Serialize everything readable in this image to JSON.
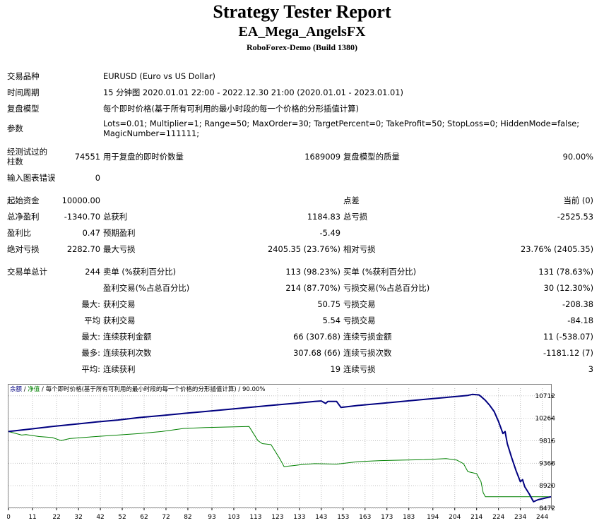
{
  "header": {
    "title": "Strategy Tester Report",
    "ea": "EA_Mega_AngelsFX",
    "broker": "RoboForex-Demo (Build 1380)"
  },
  "info": {
    "symbol_label": "交易品种",
    "symbol": "EURUSD (Euro vs US Dollar)",
    "period_label": "时间周期",
    "period": "15 分钟图 2020.01.01 22:00 - 2022.12.30 21:00 (2020.01.01 - 2023.01.01)",
    "model_label": "复盘模型",
    "model": "每个即时价格(基于所有可利用的最小时段的每一个价格的分形插值计算)",
    "params_label": "参数",
    "params": "Lots=0.01; Multiplier=1; Range=50; MaxOrder=30; TargetPercent=0; TakeProfit=50; StopLoss=0; HiddenMode=false; MagicNumber=111111;"
  },
  "stats": {
    "bars_label": "经测试过的柱数",
    "bars": "74551",
    "ticks_label": "用于复盘的即时价数量",
    "ticks": "1689009",
    "quality_label": "复盘模型的质量",
    "quality": "90.00%",
    "errors_label": "输入图表错误",
    "errors": "0",
    "deposit_label": "起始资金",
    "deposit": "10000.00",
    "spread_label": "点差",
    "spread": "当前 (0)",
    "net_label": "总净盈利",
    "net": "-1340.70",
    "gross_profit_label": "总获利",
    "gross_profit": "1184.83",
    "gross_loss_label": "总亏损",
    "gross_loss": "-2525.53",
    "pf_label": "盈利比",
    "pf": "0.47",
    "payoff_label": "预期盈利",
    "payoff": "-5.49",
    "abs_dd_label": "绝对亏损",
    "abs_dd": "2282.70",
    "max_dd_label": "最大亏损",
    "max_dd": "2405.35 (23.76%)",
    "rel_dd_label": "相对亏损",
    "rel_dd": "23.76% (2405.35)",
    "total_label": "交易单总计",
    "total": "244",
    "short_label": "卖单 (%获利百分比)",
    "short": "113 (98.23%)",
    "long_label": "买单 (%获利百分比)",
    "long": "131 (78.63%)",
    "profit_trades_label": "盈利交易(%占总百分比)",
    "profit_trades": "214 (87.70%)",
    "loss_trades_label": "亏损交易(%占总百分比)",
    "loss_trades": "30 (12.30%)",
    "largest_label": "最大:",
    "largest_win_label": "获利交易",
    "largest_win": "50.75",
    "largest_loss_label": "亏损交易",
    "largest_loss": "-208.38",
    "average_label": "平均",
    "avg_win_label": "获利交易",
    "avg_win": "5.54",
    "avg_loss_label": "亏损交易",
    "avg_loss": "-84.18",
    "max_cons_label": "最大:",
    "max_cons_win_label": "连续获利金额",
    "max_cons_win": "66 (307.68)",
    "max_cons_loss_label": "连续亏损金额",
    "max_cons_loss": "11 (-538.07)",
    "most_label": "最多:",
    "most_win_label": "连续获利次数",
    "most_win": "307.68 (66)",
    "most_loss_label": "连续亏损次数",
    "most_loss": "-1181.12 (7)",
    "avg_cons_label": "平均:",
    "avg_cons_win_label": "连续获利",
    "avg_cons_win": "19",
    "avg_cons_loss_label": "连续亏损",
    "avg_cons_loss": "3"
  },
  "chart_data": {
    "type": "line",
    "legend": {
      "balance": "余额",
      "sep1": " / ",
      "equity": "净值",
      "sep2": " / ",
      "model": "每个即时价格(基于所有可利用的最小时段的每一个价格的分形插值计算)",
      "sep3": " / ",
      "quality": "90.00%"
    },
    "x_ticks": [
      0,
      11,
      22,
      32,
      42,
      52,
      62,
      72,
      82,
      93,
      103,
      113,
      123,
      133,
      143,
      153,
      163,
      173,
      183,
      194,
      204,
      214,
      224,
      234,
      244
    ],
    "y_ticks": [
      10712,
      10264,
      9816,
      9368,
      8920,
      8472
    ],
    "xlim": [
      0,
      248
    ],
    "ylim": [
      8472,
      10864
    ],
    "colors": {
      "balance": "#000080",
      "equity": "#008000",
      "grid": "#c0c0c0"
    },
    "series": [
      {
        "name": "余额",
        "x": [
          0,
          10,
          20,
          30,
          40,
          50,
          60,
          70,
          80,
          90,
          100,
          110,
          120,
          130,
          140,
          143,
          145,
          146,
          150,
          152,
          160,
          170,
          180,
          190,
          200,
          210,
          212,
          215,
          216,
          218,
          220,
          222,
          224,
          226,
          227,
          228,
          230,
          232,
          234,
          235,
          236,
          238,
          240,
          242,
          244,
          246,
          248
        ],
        "y": [
          10000,
          10050,
          10100,
          10145,
          10190,
          10230,
          10280,
          10320,
          10360,
          10400,
          10440,
          10480,
          10520,
          10560,
          10600,
          10610,
          10560,
          10600,
          10600,
          10480,
          10520,
          10560,
          10600,
          10640,
          10680,
          10720,
          10740,
          10730,
          10700,
          10620,
          10520,
          10400,
          10200,
          9960,
          10000,
          9760,
          9480,
          9220,
          9000,
          9040,
          8900,
          8760,
          8600,
          8640,
          8660,
          8680,
          8700
        ]
      },
      {
        "name": "净值",
        "x": [
          0,
          6,
          8,
          14,
          20,
          24,
          28,
          34,
          40,
          50,
          60,
          70,
          80,
          90,
          100,
          110,
          114,
          116,
          120,
          124,
          126,
          128,
          130,
          134,
          140,
          150,
          160,
          170,
          180,
          190,
          200,
          205,
          208,
          210,
          214,
          216,
          217,
          218,
          220,
          230,
          240,
          244,
          246,
          248
        ],
        "y": [
          10000,
          9930,
          9940,
          9900,
          9880,
          9820,
          9860,
          9880,
          9900,
          9930,
          9960,
          10000,
          10060,
          10080,
          10090,
          10100,
          9820,
          9760,
          9740,
          9460,
          9300,
          9310,
          9320,
          9340,
          9360,
          9350,
          9400,
          9420,
          9430,
          9440,
          9460,
          9430,
          9360,
          9200,
          9160,
          9000,
          8780,
          8700,
          8700,
          8700,
          8700,
          8700,
          8700,
          8700
        ]
      }
    ]
  }
}
